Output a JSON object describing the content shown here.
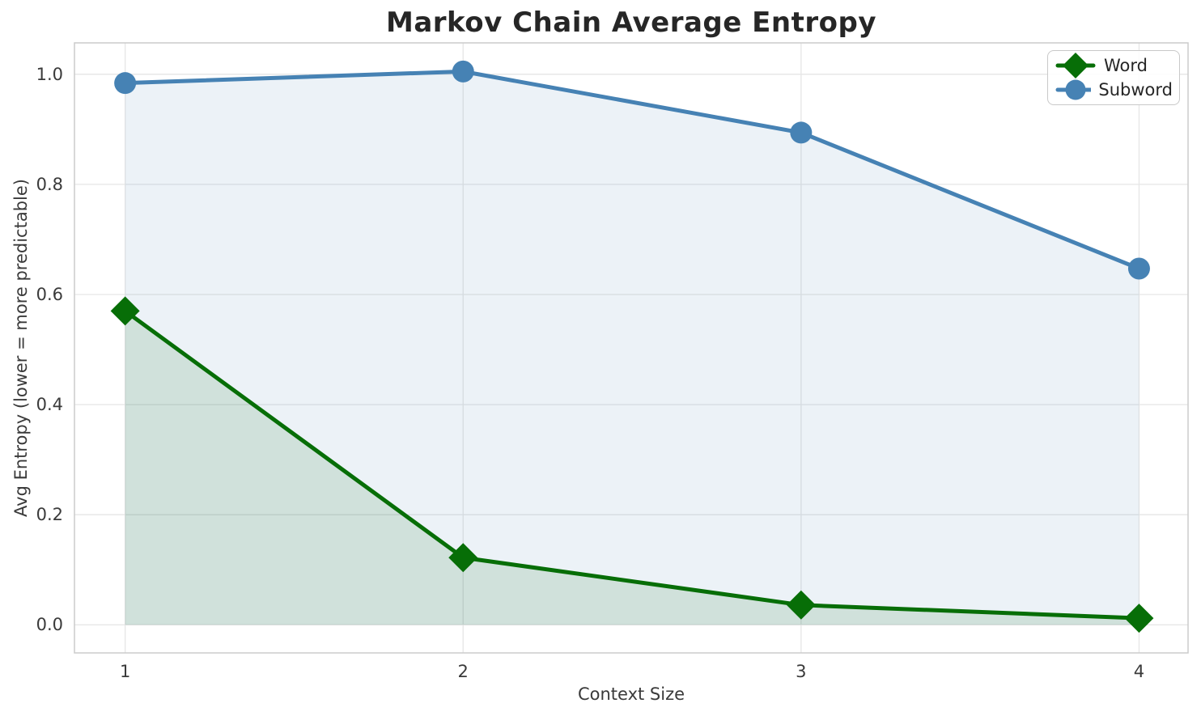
{
  "chart_data": {
    "type": "line",
    "title": "Markov Chain Average Entropy",
    "xlabel": "Context Size",
    "ylabel": "Avg Entropy (lower = more predictable)",
    "x": [
      1,
      2,
      3,
      4
    ],
    "series": [
      {
        "name": "Word",
        "marker": "diamond",
        "color": "#076e07",
        "fill_color": "rgba(0,100,0,0.12)",
        "values": [
          0.57,
          0.122,
          0.036,
          0.012
        ]
      },
      {
        "name": "Subword",
        "marker": "circle",
        "color": "#4682b4",
        "fill_color": "rgba(70,130,180,0.10)",
        "values": [
          0.984,
          1.005,
          0.894,
          0.647
        ]
      }
    ],
    "fill_to_zero": true,
    "xlim": [
      0.85,
      4.145
    ],
    "ylim": [
      -0.051,
      1.057
    ],
    "xticks": {
      "values": [
        1,
        2,
        3,
        4
      ],
      "labels": [
        "1",
        "2",
        "3",
        "4"
      ]
    },
    "yticks": {
      "values": [
        0,
        0.2,
        0.4,
        0.6,
        0.8,
        1.0
      ],
      "labels": [
        "0.0",
        "0.2",
        "0.4",
        "0.6",
        "0.8",
        "1.0"
      ]
    },
    "grid": true,
    "legend": {
      "position": "upper right",
      "entries": [
        "Word",
        "Subword"
      ]
    }
  },
  "styles": {
    "grid_color": "#e6e6e6",
    "spine_color": "#cccccc",
    "title_color": "#262626",
    "tick_color": "#3a3a3a",
    "line_width": 5,
    "circle_radius": 13.5,
    "diamond_half": 18
  }
}
